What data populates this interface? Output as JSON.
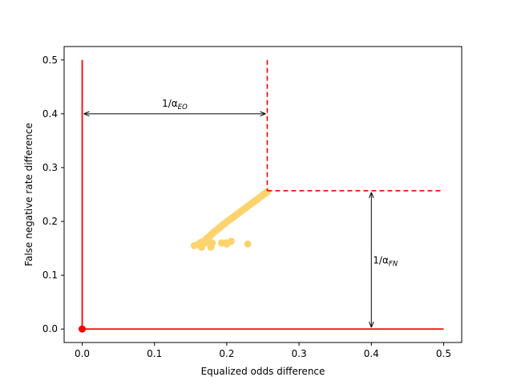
{
  "chart_data": {
    "type": "scatter",
    "title": "",
    "xlabel": "Equalized odds difference",
    "ylabel": "False negative rate difference",
    "xlim": [
      -0.025,
      0.525
    ],
    "ylim": [
      -0.025,
      0.525
    ],
    "xticks": [
      0.0,
      0.1,
      0.2,
      0.3,
      0.4,
      0.5
    ],
    "yticks": [
      0.0,
      0.1,
      0.2,
      0.3,
      0.4,
      0.5
    ],
    "xtick_labels": [
      "0.0",
      "0.1",
      "0.2",
      "0.3",
      "0.4",
      "0.5"
    ],
    "ytick_labels": [
      "0.0",
      "0.1",
      "0.2",
      "0.3",
      "0.4",
      "0.5"
    ],
    "grid": false,
    "colors": {
      "scatter": "#fdd36f",
      "bounds": "#ff0000",
      "arrows": "#000000"
    },
    "scatter_points": [
      [
        0.155,
        0.155
      ],
      [
        0.16,
        0.157
      ],
      [
        0.163,
        0.16
      ],
      [
        0.166,
        0.162
      ],
      [
        0.168,
        0.158
      ],
      [
        0.17,
        0.165
      ],
      [
        0.172,
        0.168
      ],
      [
        0.174,
        0.17
      ],
      [
        0.176,
        0.172
      ],
      [
        0.178,
        0.175
      ],
      [
        0.18,
        0.177
      ],
      [
        0.182,
        0.18
      ],
      [
        0.184,
        0.182
      ],
      [
        0.186,
        0.184
      ],
      [
        0.188,
        0.186
      ],
      [
        0.19,
        0.188
      ],
      [
        0.192,
        0.191
      ],
      [
        0.194,
        0.193
      ],
      [
        0.196,
        0.195
      ],
      [
        0.198,
        0.197
      ],
      [
        0.2,
        0.199
      ],
      [
        0.202,
        0.201
      ],
      [
        0.204,
        0.203
      ],
      [
        0.206,
        0.205
      ],
      [
        0.208,
        0.207
      ],
      [
        0.21,
        0.209
      ],
      [
        0.212,
        0.211
      ],
      [
        0.214,
        0.213
      ],
      [
        0.216,
        0.215
      ],
      [
        0.218,
        0.217
      ],
      [
        0.22,
        0.219
      ],
      [
        0.222,
        0.221
      ],
      [
        0.224,
        0.223
      ],
      [
        0.226,
        0.225
      ],
      [
        0.228,
        0.227
      ],
      [
        0.23,
        0.229
      ],
      [
        0.232,
        0.231
      ],
      [
        0.234,
        0.233
      ],
      [
        0.236,
        0.235
      ],
      [
        0.238,
        0.237
      ],
      [
        0.24,
        0.239
      ],
      [
        0.242,
        0.241
      ],
      [
        0.244,
        0.243
      ],
      [
        0.246,
        0.245
      ],
      [
        0.248,
        0.247
      ],
      [
        0.25,
        0.249
      ],
      [
        0.252,
        0.251
      ],
      [
        0.254,
        0.253
      ],
      [
        0.256,
        0.255
      ],
      [
        0.165,
        0.152
      ],
      [
        0.178,
        0.152
      ],
      [
        0.172,
        0.161
      ],
      [
        0.18,
        0.16
      ],
      [
        0.193,
        0.16
      ],
      [
        0.199,
        0.16
      ],
      [
        0.2,
        0.158
      ],
      [
        0.206,
        0.163
      ],
      [
        0.229,
        0.158
      ]
    ],
    "origin_point": [
      0.0,
      0.0
    ],
    "bounds": {
      "x_bound": 0.256,
      "y_bound": 0.257,
      "axis_max": 0.5
    },
    "annotations": [
      {
        "label": "1/α",
        "sub": "EO",
        "arrow_from": [
          0.0,
          0.4
        ],
        "arrow_to": [
          0.256,
          0.4
        ],
        "text_at": [
          0.128,
          0.41
        ]
      },
      {
        "label": "1/α",
        "sub": "FN",
        "arrow_from": [
          0.4,
          0.0
        ],
        "arrow_to": [
          0.4,
          0.257
        ],
        "text_at": [
          0.4,
          0.128
        ]
      }
    ]
  }
}
